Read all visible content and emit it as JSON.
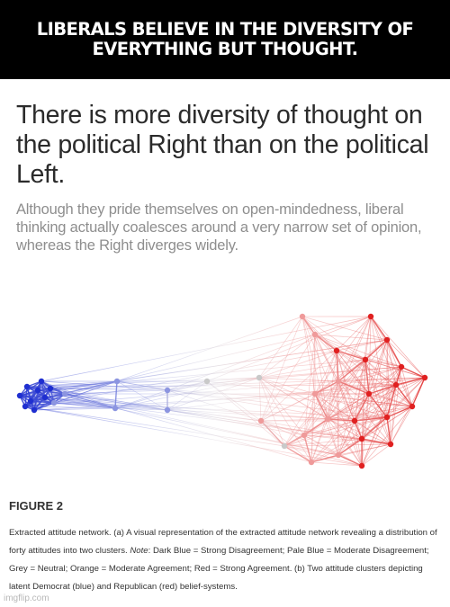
{
  "meme": {
    "caption": "LIBERALS BELIEVE IN THE DIVERSITY OF EVERYTHING BUT THOUGHT."
  },
  "article": {
    "headline": "There is more diversity of thought on the political Right than on the political Left.",
    "subhead": "Although they pride themselves on open-mindedness, liberal thinking actually coalesces around a very narrow set of opinion, whereas the Right diverges widely."
  },
  "figure": {
    "label": "FIGURE 2",
    "caption_part1": "Extracted attitude network. (a) A visual representation of the extracted attitude network revealing a distribution of forty attitudes into two clusters. ",
    "caption_note_label": "Note",
    "caption_part2": ": Dark Blue = Strong Disagreement; Pale Blue = Moderate Disagreement; Grey = Neutral; Orange = Moderate Agreement; Red = Strong Agreement. (b) Two attitude clusters depicting latent Democrat (blue) and Republican (red) belief-systems.",
    "colors": {
      "strong_disagreement": "#1f2fd0",
      "moderate_disagreement": "#8c95e0",
      "neutral": "#c9c9c9",
      "moderate_agreement": "#ef9a9a",
      "strong_agreement": "#e02020"
    }
  },
  "watermark": "imgflip.com"
}
